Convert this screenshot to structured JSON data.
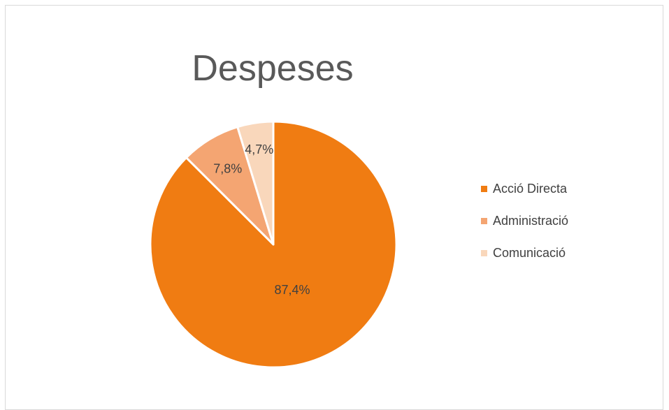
{
  "chart_data": {
    "type": "pie",
    "title": "Despeses",
    "categories": [
      "Acció Directa",
      "Administració",
      "Comunicació"
    ],
    "values": [
      87.4,
      7.8,
      4.7
    ],
    "data_labels": [
      "87,4%",
      "7,8%",
      "4,7%"
    ],
    "colors": [
      "#f07c12",
      "#f4a572",
      "#f9d7bb"
    ],
    "legend_position": "right"
  }
}
